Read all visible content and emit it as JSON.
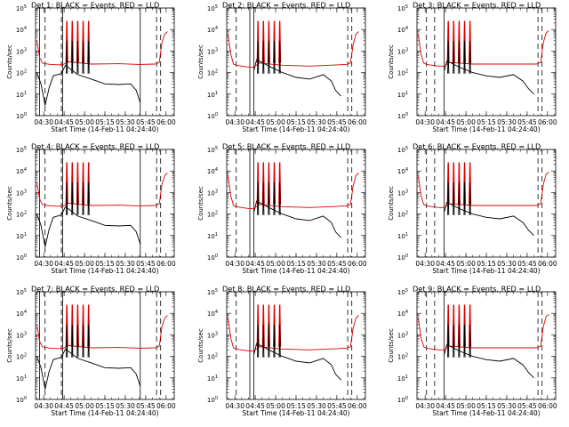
{
  "figure": {
    "xlabel": "Start Time (14-Feb-11 04:24:40)",
    "ylabel": "Counts/sec",
    "series_names": [
      "BLACK = Events",
      "RED = LLD"
    ],
    "colors": {
      "events": "#000000",
      "lld": "#dd0000",
      "axes": "#000000",
      "background": "#ffffff"
    }
  },
  "chart_data": [
    {
      "type": "line",
      "title": "Det 1: BLACK = Events, RED = LLD",
      "xlabel": "Start Time (14-Feb-11 04:24:40)",
      "ylabel": "Counts/sec",
      "xlim": [
        "04:24",
        "06:06"
      ],
      "ylim": [
        1,
        100000
      ],
      "yscale": "log",
      "xticks": [
        "04:30",
        "04:45",
        "05:00",
        "05:15",
        "05:30",
        "05:45",
        "06:00"
      ],
      "yticks": [
        "10^0",
        "10^1",
        "10^2",
        "10^3",
        "10^4",
        "10^5"
      ],
      "solid_markers": [
        "04:27",
        "04:44",
        "05:41"
      ],
      "dashed_markers": [
        "04:31",
        "04:43",
        "05:53",
        "05:56"
      ],
      "spike_times": [
        "04:47",
        "04:51",
        "04:55",
        "04:59",
        "05:03"
      ],
      "series": [
        {
          "name": "BLACK = Events",
          "x": [
            "04:25",
            "04:28",
            "04:31",
            "04:34",
            "04:37",
            "04:40",
            "04:43",
            "04:46",
            "04:55",
            "05:05",
            "05:15",
            "05:25",
            "05:34",
            "05:38",
            "05:41"
          ],
          "y": [
            100,
            30,
            3,
            20,
            70,
            80,
            90,
            220,
            80,
            50,
            30,
            28,
            30,
            15,
            4
          ]
        },
        {
          "name": "RED = LLD",
          "x": [
            "04:25",
            "04:27",
            "04:29",
            "04:31",
            "04:35",
            "04:40",
            "04:44",
            "04:48",
            "05:05",
            "05:25",
            "05:40",
            "05:52",
            "05:55",
            "05:57",
            "05:59",
            "06:01"
          ],
          "y": [
            3000,
            500,
            280,
            260,
            240,
            230,
            230,
            320,
            250,
            260,
            240,
            250,
            300,
            2500,
            6000,
            8000
          ]
        }
      ]
    },
    {
      "type": "line",
      "title": "Det 2: BLACK = Events, RED = LLD",
      "xlabel": "Start Time (14-Feb-11 04:24:40)",
      "ylabel": "Counts/sec",
      "xlim": [
        "04:24",
        "06:06"
      ],
      "ylim": [
        1,
        100000
      ],
      "yscale": "log",
      "xticks": [
        "04:30",
        "04:45",
        "05:00",
        "05:15",
        "05:30",
        "05:45",
        "06:00"
      ],
      "yticks": [
        "10^0",
        "10^1",
        "10^2",
        "10^3",
        "10^4",
        "10^5"
      ],
      "solid_markers": [
        "04:41",
        "04:44"
      ],
      "dashed_markers": [
        "04:31",
        "05:53",
        "05:56"
      ],
      "spike_times": [
        "04:47",
        "04:51",
        "04:55",
        "04:59",
        "05:03"
      ],
      "series": [
        {
          "name": "BLACK = Events",
          "x": [
            "04:44",
            "04:46",
            "04:55",
            "05:05",
            "05:15",
            "05:25",
            "05:35",
            "05:41",
            "05:44",
            "05:48"
          ],
          "y": [
            120,
            400,
            200,
            100,
            60,
            50,
            80,
            40,
            15,
            8
          ]
        },
        {
          "name": "RED = LLD",
          "x": [
            "04:25",
            "04:27",
            "04:29",
            "04:31",
            "04:35",
            "04:40",
            "04:44",
            "04:48",
            "05:05",
            "05:25",
            "05:40",
            "05:52",
            "05:55",
            "05:57",
            "05:59",
            "06:01"
          ],
          "y": [
            6000,
            700,
            250,
            220,
            200,
            180,
            180,
            280,
            220,
            200,
            220,
            240,
            280,
            2000,
            6000,
            8000
          ]
        }
      ]
    },
    {
      "type": "line",
      "title": "Det 3: BLACK = Events, RED = LLD",
      "xlabel": "Start Time (14-Feb-11 04:24:40)",
      "ylabel": "Counts/sec",
      "xlim": [
        "04:24",
        "06:06"
      ],
      "ylim": [
        1,
        100000
      ],
      "yscale": "log",
      "xticks": [
        "04:30",
        "04:45",
        "05:00",
        "05:15",
        "05:30",
        "05:45",
        "06:00"
      ],
      "yticks": [
        "10^0",
        "10^1",
        "10^2",
        "10^3",
        "10^4",
        "10^5"
      ],
      "solid_markers": [
        "04:44"
      ],
      "dashed_markers": [
        "04:31",
        "04:37",
        "05:53",
        "05:56"
      ],
      "spike_times": [
        "04:47",
        "04:51",
        "04:55",
        "04:59",
        "05:03"
      ],
      "series": [
        {
          "name": "BLACK = Events",
          "x": [
            "04:44",
            "04:46",
            "04:55",
            "05:05",
            "05:15",
            "05:25",
            "05:35",
            "05:42",
            "05:46",
            "05:50"
          ],
          "y": [
            120,
            350,
            180,
            100,
            70,
            60,
            80,
            40,
            18,
            10
          ]
        },
        {
          "name": "RED = LLD",
          "x": [
            "04:25",
            "04:27",
            "04:29",
            "04:31",
            "04:35",
            "04:40",
            "04:44",
            "04:48",
            "05:05",
            "05:25",
            "05:40",
            "05:52",
            "05:55",
            "05:57",
            "05:59",
            "06:01"
          ],
          "y": [
            6000,
            700,
            280,
            240,
            220,
            200,
            200,
            300,
            250,
            250,
            250,
            250,
            300,
            2500,
            7000,
            9000
          ]
        }
      ]
    },
    {
      "type": "line",
      "title": "Det 4: BLACK = Events, RED = LLD",
      "xlabel": "Start Time (14-Feb-11 04:24:40)",
      "ylabel": "Counts/sec",
      "xlim": [
        "04:24",
        "06:06"
      ],
      "ylim": [
        1,
        100000
      ],
      "yscale": "log",
      "xticks": [
        "04:30",
        "04:45",
        "05:00",
        "05:15",
        "05:30",
        "05:45",
        "06:00"
      ],
      "yticks": [
        "10^0",
        "10^1",
        "10^2",
        "10^3",
        "10^4",
        "10^5"
      ],
      "solid_markers": [
        "04:27",
        "04:44",
        "05:41"
      ],
      "dashed_markers": [
        "04:31",
        "04:43",
        "05:53",
        "05:56"
      ],
      "spike_times": [
        "04:47",
        "04:51",
        "04:55",
        "04:59",
        "05:03"
      ],
      "series": [
        {
          "name": "BLACK = Events",
          "x": [
            "04:25",
            "04:28",
            "04:31",
            "04:34",
            "04:37",
            "04:40",
            "04:43",
            "04:46",
            "04:55",
            "05:05",
            "05:15",
            "05:25",
            "05:34",
            "05:38",
            "05:41"
          ],
          "y": [
            100,
            30,
            3,
            20,
            70,
            80,
            90,
            220,
            80,
            50,
            30,
            28,
            30,
            15,
            4
          ]
        },
        {
          "name": "RED = LLD",
          "x": [
            "04:25",
            "04:27",
            "04:29",
            "04:31",
            "04:35",
            "04:40",
            "04:44",
            "04:48",
            "05:05",
            "05:25",
            "05:40",
            "05:52",
            "05:55",
            "05:57",
            "05:59",
            "06:01"
          ],
          "y": [
            3000,
            500,
            280,
            260,
            240,
            230,
            230,
            320,
            250,
            260,
            240,
            250,
            300,
            2500,
            6000,
            8000
          ]
        }
      ]
    },
    {
      "type": "line",
      "title": "Det 5: BLACK = Events, RED = LLD",
      "xlabel": "Start Time (14-Feb-11 04:24:40)",
      "ylabel": "Counts/sec",
      "xlim": [
        "04:24",
        "06:06"
      ],
      "ylim": [
        1,
        100000
      ],
      "yscale": "log",
      "xticks": [
        "04:30",
        "04:45",
        "05:00",
        "05:15",
        "05:30",
        "05:45",
        "06:00"
      ],
      "yticks": [
        "10^0",
        "10^1",
        "10^2",
        "10^3",
        "10^4",
        "10^5"
      ],
      "solid_markers": [
        "04:41",
        "04:44"
      ],
      "dashed_markers": [
        "04:31",
        "05:53",
        "05:56"
      ],
      "spike_times": [
        "04:47",
        "04:51",
        "04:55",
        "04:59",
        "05:03"
      ],
      "series": [
        {
          "name": "BLACK = Events",
          "x": [
            "04:44",
            "04:46",
            "04:55",
            "05:05",
            "05:15",
            "05:25",
            "05:35",
            "05:41",
            "05:44",
            "05:48"
          ],
          "y": [
            120,
            400,
            200,
            100,
            60,
            50,
            80,
            40,
            15,
            8
          ]
        },
        {
          "name": "RED = LLD",
          "x": [
            "04:25",
            "04:27",
            "04:29",
            "04:31",
            "04:35",
            "04:40",
            "04:44",
            "04:48",
            "05:05",
            "05:25",
            "05:40",
            "05:52",
            "05:55",
            "05:57",
            "05:59",
            "06:01"
          ],
          "y": [
            6000,
            700,
            250,
            220,
            200,
            180,
            180,
            280,
            220,
            200,
            220,
            240,
            280,
            2000,
            6000,
            8000
          ]
        }
      ]
    },
    {
      "type": "line",
      "title": "Det 6: BLACK = Events, RED = LLD",
      "xlabel": "Start Time (14-Feb-11 04:24:40)",
      "ylabel": "Counts/sec",
      "xlim": [
        "04:24",
        "06:06"
      ],
      "ylim": [
        1,
        100000
      ],
      "yscale": "log",
      "xticks": [
        "04:30",
        "04:45",
        "05:00",
        "05:15",
        "05:30",
        "05:45",
        "06:00"
      ],
      "yticks": [
        "10^0",
        "10^1",
        "10^2",
        "10^3",
        "10^4",
        "10^5"
      ],
      "solid_markers": [
        "04:44"
      ],
      "dashed_markers": [
        "04:31",
        "04:37",
        "05:53",
        "05:56"
      ],
      "spike_times": [
        "04:47",
        "04:51",
        "04:55",
        "04:59",
        "05:03"
      ],
      "series": [
        {
          "name": "BLACK = Events",
          "x": [
            "04:44",
            "04:46",
            "04:55",
            "05:05",
            "05:15",
            "05:25",
            "05:35",
            "05:42",
            "05:46",
            "05:50"
          ],
          "y": [
            120,
            350,
            180,
            100,
            70,
            60,
            80,
            40,
            18,
            10
          ]
        },
        {
          "name": "RED = LLD",
          "x": [
            "04:25",
            "04:27",
            "04:29",
            "04:31",
            "04:35",
            "04:40",
            "04:44",
            "04:48",
            "05:05",
            "05:25",
            "05:40",
            "05:52",
            "05:55",
            "05:57",
            "05:59",
            "06:01"
          ],
          "y": [
            6000,
            700,
            280,
            240,
            220,
            200,
            200,
            300,
            250,
            250,
            250,
            250,
            300,
            2500,
            7000,
            9000
          ]
        }
      ]
    },
    {
      "type": "line",
      "title": "Det 7: BLACK = Events, RED = LLD",
      "xlabel": "Start Time (14-Feb-11 04:24:40)",
      "ylabel": "Counts/sec",
      "xlim": [
        "04:24",
        "06:06"
      ],
      "ylim": [
        1,
        100000
      ],
      "yscale": "log",
      "xticks": [
        "04:30",
        "04:45",
        "05:00",
        "05:15",
        "05:30",
        "05:45",
        "06:00"
      ],
      "yticks": [
        "10^0",
        "10^1",
        "10^2",
        "10^3",
        "10^4",
        "10^5"
      ],
      "solid_markers": [
        "04:27",
        "04:44",
        "05:41"
      ],
      "dashed_markers": [
        "04:31",
        "04:43",
        "05:53",
        "05:56"
      ],
      "spike_times": [
        "04:47",
        "04:51",
        "04:55",
        "04:59",
        "05:03"
      ],
      "series": [
        {
          "name": "BLACK = Events",
          "x": [
            "04:25",
            "04:28",
            "04:31",
            "04:34",
            "04:37",
            "04:40",
            "04:43",
            "04:46",
            "04:55",
            "05:05",
            "05:15",
            "05:25",
            "05:34",
            "05:38",
            "05:41"
          ],
          "y": [
            100,
            30,
            3,
            20,
            70,
            80,
            90,
            220,
            80,
            50,
            30,
            28,
            30,
            15,
            4
          ]
        },
        {
          "name": "RED = LLD",
          "x": [
            "04:25",
            "04:27",
            "04:29",
            "04:31",
            "04:35",
            "04:40",
            "04:44",
            "04:48",
            "05:05",
            "05:25",
            "05:40",
            "05:52",
            "05:55",
            "05:57",
            "05:59",
            "06:01"
          ],
          "y": [
            3000,
            500,
            280,
            260,
            240,
            230,
            230,
            320,
            250,
            260,
            240,
            250,
            300,
            2500,
            6000,
            8000
          ]
        }
      ]
    },
    {
      "type": "line",
      "title": "Det 8: BLACK = Events, RED = LLD",
      "xlabel": "Start Time (14-Feb-11 04:24:40)",
      "ylabel": "Counts/sec",
      "xlim": [
        "04:24",
        "06:06"
      ],
      "ylim": [
        1,
        100000
      ],
      "yscale": "log",
      "xticks": [
        "04:30",
        "04:45",
        "05:00",
        "05:15",
        "05:30",
        "05:45",
        "06:00"
      ],
      "yticks": [
        "10^0",
        "10^1",
        "10^2",
        "10^3",
        "10^4",
        "10^5"
      ],
      "solid_markers": [
        "04:41",
        "04:44"
      ],
      "dashed_markers": [
        "04:31",
        "05:53",
        "05:56"
      ],
      "spike_times": [
        "04:47",
        "04:51",
        "04:55",
        "04:59",
        "05:03"
      ],
      "series": [
        {
          "name": "BLACK = Events",
          "x": [
            "04:44",
            "04:46",
            "04:55",
            "05:05",
            "05:15",
            "05:25",
            "05:35",
            "05:41",
            "05:44",
            "05:48"
          ],
          "y": [
            120,
            400,
            200,
            100,
            60,
            50,
            80,
            40,
            15,
            8
          ]
        },
        {
          "name": "RED = LLD",
          "x": [
            "04:25",
            "04:27",
            "04:29",
            "04:31",
            "04:35",
            "04:40",
            "04:44",
            "04:48",
            "05:05",
            "05:25",
            "05:40",
            "05:52",
            "05:55",
            "05:57",
            "05:59",
            "06:01"
          ],
          "y": [
            6000,
            700,
            250,
            220,
            200,
            180,
            180,
            280,
            220,
            200,
            220,
            240,
            280,
            2000,
            6000,
            8000
          ]
        }
      ]
    },
    {
      "type": "line",
      "title": "Det 9: BLACK = Events, RED = LLD",
      "xlabel": "Start Time (14-Feb-11 04:24:40)",
      "ylabel": "Counts/sec",
      "xlim": [
        "04:24",
        "06:06"
      ],
      "ylim": [
        1,
        100000
      ],
      "yscale": "log",
      "xticks": [
        "04:30",
        "04:45",
        "05:00",
        "05:15",
        "05:30",
        "05:45",
        "06:00"
      ],
      "yticks": [
        "10^0",
        "10^1",
        "10^2",
        "10^3",
        "10^4",
        "10^5"
      ],
      "solid_markers": [
        "04:44"
      ],
      "dashed_markers": [
        "04:31",
        "04:37",
        "05:53",
        "05:56"
      ],
      "spike_times": [
        "04:47",
        "04:51",
        "04:55",
        "04:59",
        "05:03"
      ],
      "series": [
        {
          "name": "BLACK = Events",
          "x": [
            "04:44",
            "04:46",
            "04:55",
            "05:05",
            "05:15",
            "05:25",
            "05:35",
            "05:42",
            "05:46",
            "05:50"
          ],
          "y": [
            120,
            350,
            180,
            100,
            70,
            60,
            80,
            40,
            18,
            10
          ]
        },
        {
          "name": "RED = LLD",
          "x": [
            "04:25",
            "04:27",
            "04:29",
            "04:31",
            "04:35",
            "04:40",
            "04:44",
            "04:48",
            "05:05",
            "05:25",
            "05:40",
            "05:52",
            "05:55",
            "05:57",
            "05:59",
            "06:01"
          ],
          "y": [
            6000,
            700,
            280,
            240,
            220,
            200,
            200,
            300,
            250,
            250,
            250,
            250,
            300,
            2500,
            7000,
            9000
          ]
        }
      ]
    }
  ]
}
